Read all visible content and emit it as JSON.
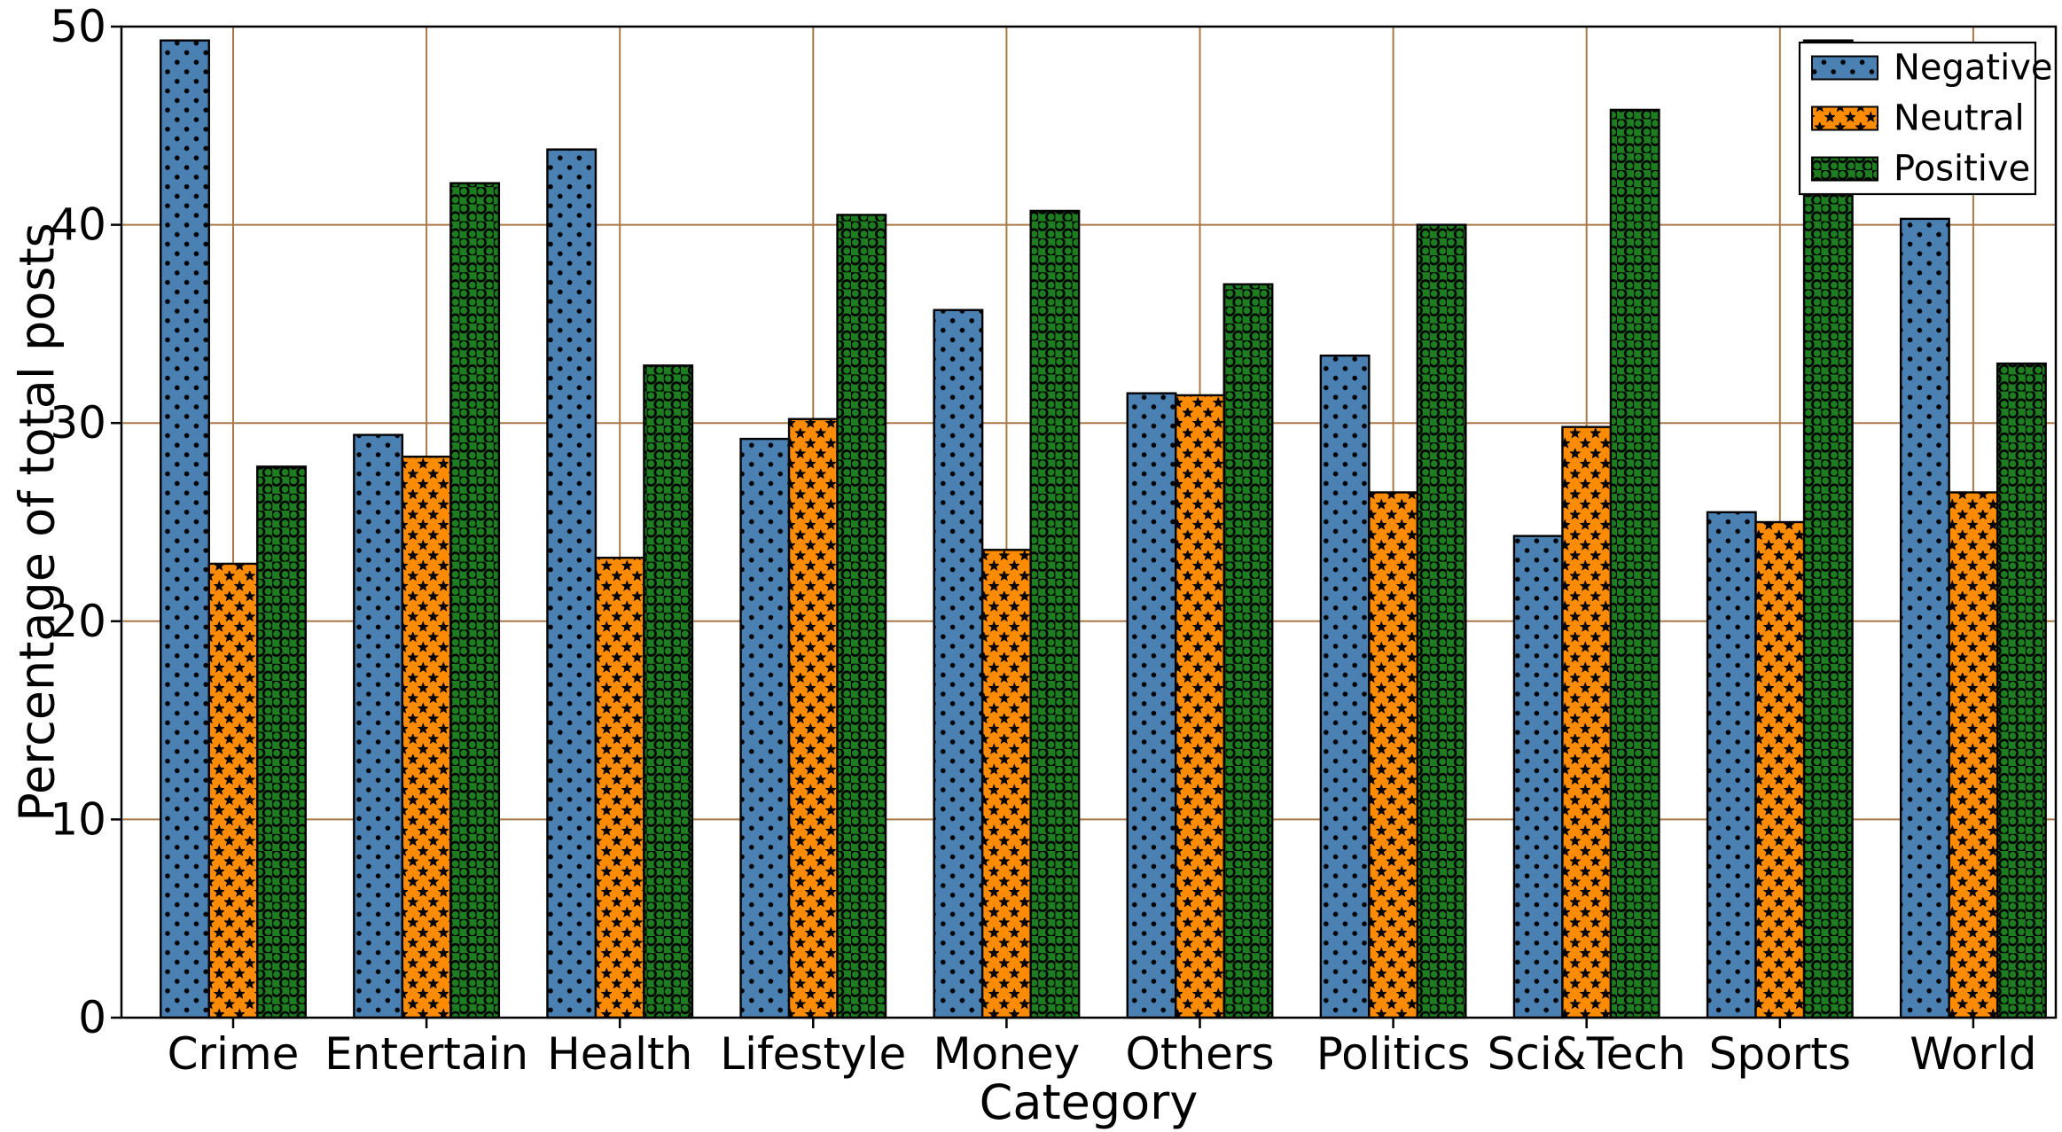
{
  "chart_data": {
    "type": "bar",
    "title": "",
    "xlabel": "Category",
    "ylabel": "Percentage of total posts",
    "categories": [
      "Crime",
      "Entertain",
      "Health",
      "Lifestyle",
      "Money",
      "Others",
      "Politics",
      "Sci&Tech",
      "Sports",
      "World"
    ],
    "series": [
      {
        "name": "Negative",
        "color": "#4a80b2",
        "hatch": "dot",
        "values": [
          49.3,
          29.4,
          43.8,
          29.2,
          35.7,
          31.5,
          33.4,
          24.3,
          25.5,
          40.3
        ]
      },
      {
        "name": "Neutral",
        "color": "#ff8c00",
        "hatch": "star",
        "values": [
          22.9,
          28.3,
          23.2,
          30.2,
          23.6,
          31.4,
          26.5,
          29.8,
          25.0,
          26.5
        ]
      },
      {
        "name": "Positive",
        "color": "#1e7d20",
        "hatch": "ring",
        "values": [
          27.8,
          42.1,
          32.9,
          40.5,
          40.7,
          37.0,
          40.0,
          45.8,
          49.3,
          33.0
        ]
      }
    ],
    "ylim": [
      0,
      50
    ],
    "yticks": [
      0,
      10,
      20,
      30,
      40,
      50
    ],
    "grid": true,
    "grid_color": "#a87848",
    "axis_color": "#000000",
    "legend_position": "upper right",
    "legend_labels": [
      "Negative",
      "Neutral",
      "Positive"
    ]
  }
}
